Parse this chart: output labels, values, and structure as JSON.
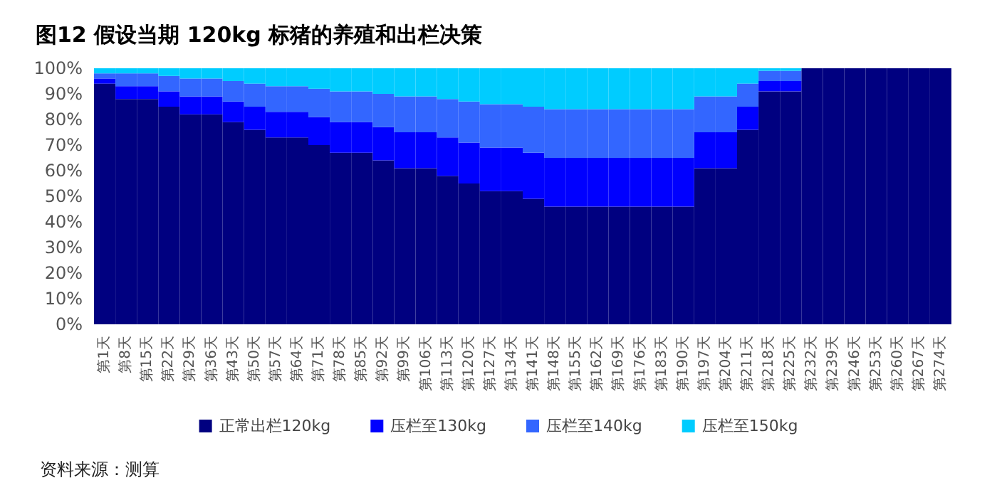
{
  "chart_data": {
    "type": "bar",
    "stacked": true,
    "title": "图12 假设当期 120kg 标猪的养殖和出栏决策",
    "categories": [
      "第1天",
      "第8天",
      "第15天",
      "第22天",
      "第29天",
      "第36天",
      "第43天",
      "第50天",
      "第57天",
      "第64天",
      "第71天",
      "第78天",
      "第85天",
      "第92天",
      "第99天",
      "第106天",
      "第113天",
      "第120天",
      "第127天",
      "第134天",
      "第141天",
      "第148天",
      "第155天",
      "第162天",
      "第169天",
      "第176天",
      "第183天",
      "第190天",
      "第197天",
      "第204天",
      "第211天",
      "第218天",
      "第225天",
      "第232天",
      "第239天",
      "第246天",
      "第253天",
      "第260天",
      "第267天",
      "第274天"
    ],
    "series": [
      {
        "name": "正常出栏120kg",
        "color": "#000080",
        "values": [
          94,
          88,
          88,
          85,
          82,
          82,
          79,
          76,
          73,
          73,
          70,
          67,
          67,
          64,
          61,
          61,
          58,
          55,
          52,
          52,
          49,
          46,
          46,
          46,
          46,
          46,
          46,
          46,
          61,
          61,
          76,
          91,
          91,
          100,
          100,
          100,
          100,
          100,
          100,
          100
        ]
      },
      {
        "name": "压栏至130kg",
        "color": "#0000ff",
        "values": [
          2,
          5,
          5,
          6,
          7,
          7,
          8,
          9,
          10,
          10,
          11,
          12,
          12,
          13,
          14,
          14,
          15,
          16,
          17,
          17,
          18,
          19,
          19,
          19,
          19,
          19,
          19,
          19,
          14,
          14,
          9,
          4,
          4,
          0,
          0,
          0,
          0,
          0,
          0,
          0
        ]
      },
      {
        "name": "压栏至140kg",
        "color": "#3366ff",
        "values": [
          2,
          5,
          5,
          6,
          7,
          7,
          8,
          9,
          10,
          10,
          11,
          12,
          12,
          13,
          14,
          14,
          15,
          16,
          17,
          17,
          18,
          19,
          19,
          19,
          19,
          19,
          19,
          19,
          14,
          14,
          9,
          4,
          4,
          0,
          0,
          0,
          0,
          0,
          0,
          0
        ]
      },
      {
        "name": "压栏至150kg",
        "color": "#00ccff",
        "values": [
          2,
          2,
          2,
          3,
          4,
          4,
          5,
          6,
          7,
          7,
          8,
          9,
          9,
          10,
          11,
          11,
          12,
          13,
          14,
          14,
          15,
          16,
          16,
          16,
          16,
          16,
          16,
          16,
          11,
          11,
          6,
          1,
          1,
          0,
          0,
          0,
          0,
          0,
          0,
          0
        ]
      }
    ],
    "ylim": [
      0,
      100
    ],
    "yticks": [
      {
        "value": 0,
        "label": "0%"
      },
      {
        "value": 10,
        "label": "10%"
      },
      {
        "value": 20,
        "label": "20%"
      },
      {
        "value": 30,
        "label": "30%"
      },
      {
        "value": 40,
        "label": "40%"
      },
      {
        "value": 50,
        "label": "50%"
      },
      {
        "value": 60,
        "label": "60%"
      },
      {
        "value": 70,
        "label": "70%"
      },
      {
        "value": 80,
        "label": "80%"
      },
      {
        "value": 90,
        "label": "90%"
      },
      {
        "value": 100,
        "label": "100%"
      }
    ],
    "grid": false,
    "legend": "bottom",
    "annotations": [
      "资料来源：测算"
    ]
  }
}
